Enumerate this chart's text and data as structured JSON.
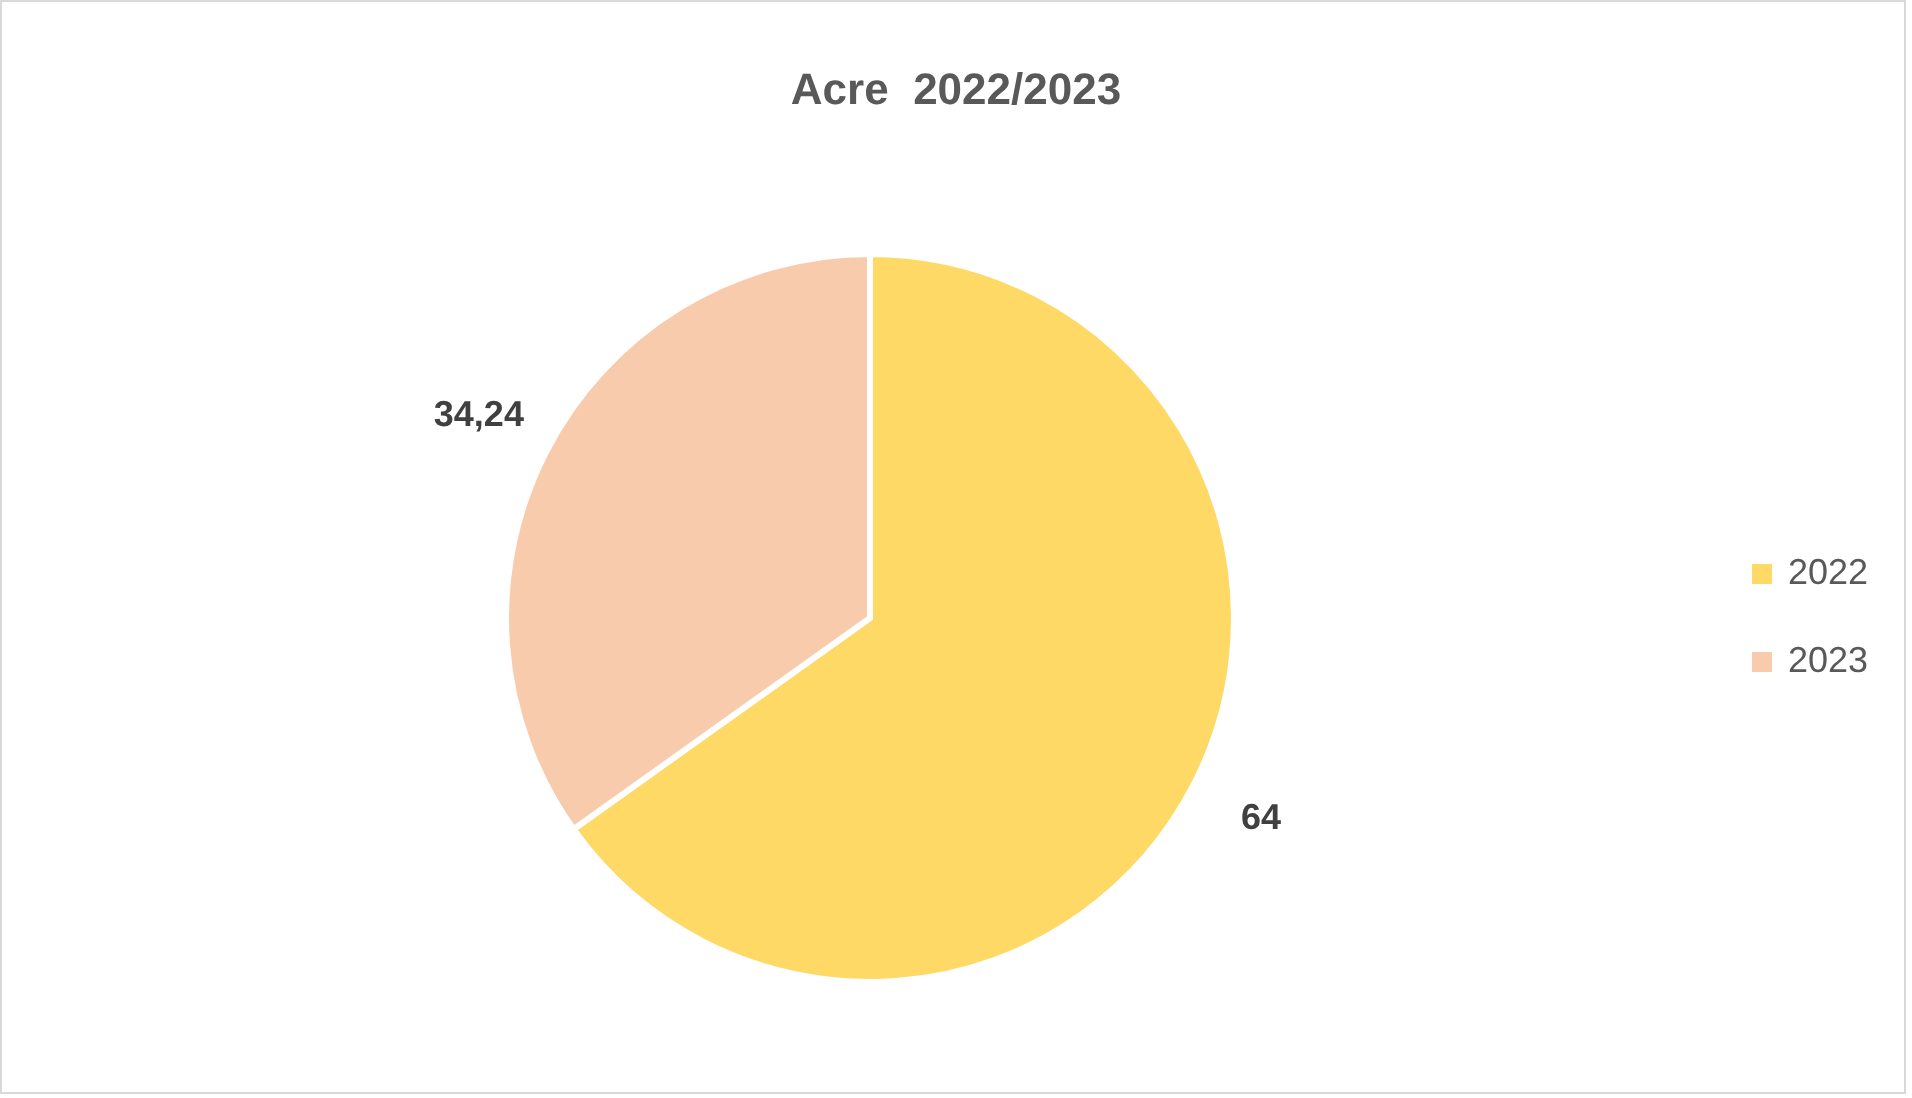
{
  "chart_data": {
    "type": "pie",
    "title": "Acre  2022/2023",
    "categories": [
      "2022",
      "2023"
    ],
    "values": [
      64,
      34.24
    ],
    "colors": [
      "#ffd966",
      "#f8cbad"
    ],
    "value_labels": [
      "64",
      "34,24"
    ],
    "legend": "right"
  }
}
